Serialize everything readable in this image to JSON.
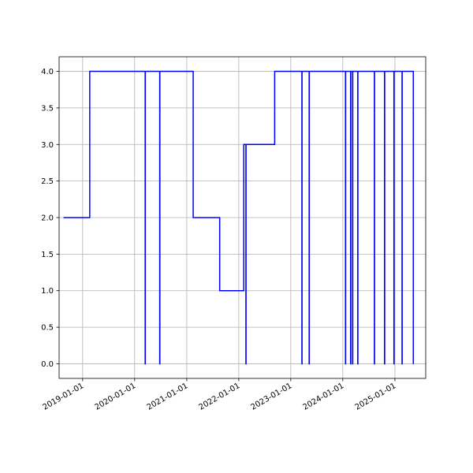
{
  "chart_data": {
    "type": "line",
    "title": "",
    "xlabel": "",
    "ylabel": "",
    "xlim": [
      "2018-07-20",
      "2025-08-05"
    ],
    "ylim": [
      -0.2,
      4.2
    ],
    "grid": true,
    "line_color": "#0000ff",
    "step": "post",
    "x_ticks": [
      "2019-01-01",
      "2020-01-01",
      "2021-01-01",
      "2022-01-01",
      "2023-01-01",
      "2024-01-01",
      "2025-01-01"
    ],
    "y_ticks": [
      "0.0",
      "0.5",
      "1.0",
      "1.5",
      "2.0",
      "2.5",
      "3.0",
      "3.5",
      "4.0"
    ],
    "series": [
      {
        "x": [
          "2018-08-20",
          "2019-02-20",
          "2020-03-15",
          "2020-03-16",
          "2020-06-25",
          "2020-06-26",
          "2021-02-15",
          "2021-08-20",
          "2022-02-05",
          "2022-02-20",
          "2022-02-21",
          "2022-09-10",
          "2023-03-20",
          "2023-03-21",
          "2023-05-10",
          "2023-05-11",
          "2024-01-20",
          "2024-01-21",
          "2024-02-25",
          "2024-02-26",
          "2024-03-10",
          "2024-03-11",
          "2024-04-15",
          "2024-04-16",
          "2024-08-10",
          "2024-08-11",
          "2024-10-20",
          "2024-10-21",
          "2024-12-25",
          "2024-12-26",
          "2025-02-20",
          "2025-02-21",
          "2025-05-10",
          "2025-05-11"
        ],
        "y": [
          2,
          4,
          0,
          4,
          0,
          4,
          2,
          1,
          3,
          0,
          3,
          4,
          0,
          4,
          0,
          4,
          0,
          4,
          0,
          4,
          0,
          4,
          0,
          4,
          0,
          4,
          0,
          4,
          0,
          4,
          0,
          4,
          0,
          0
        ]
      }
    ]
  }
}
